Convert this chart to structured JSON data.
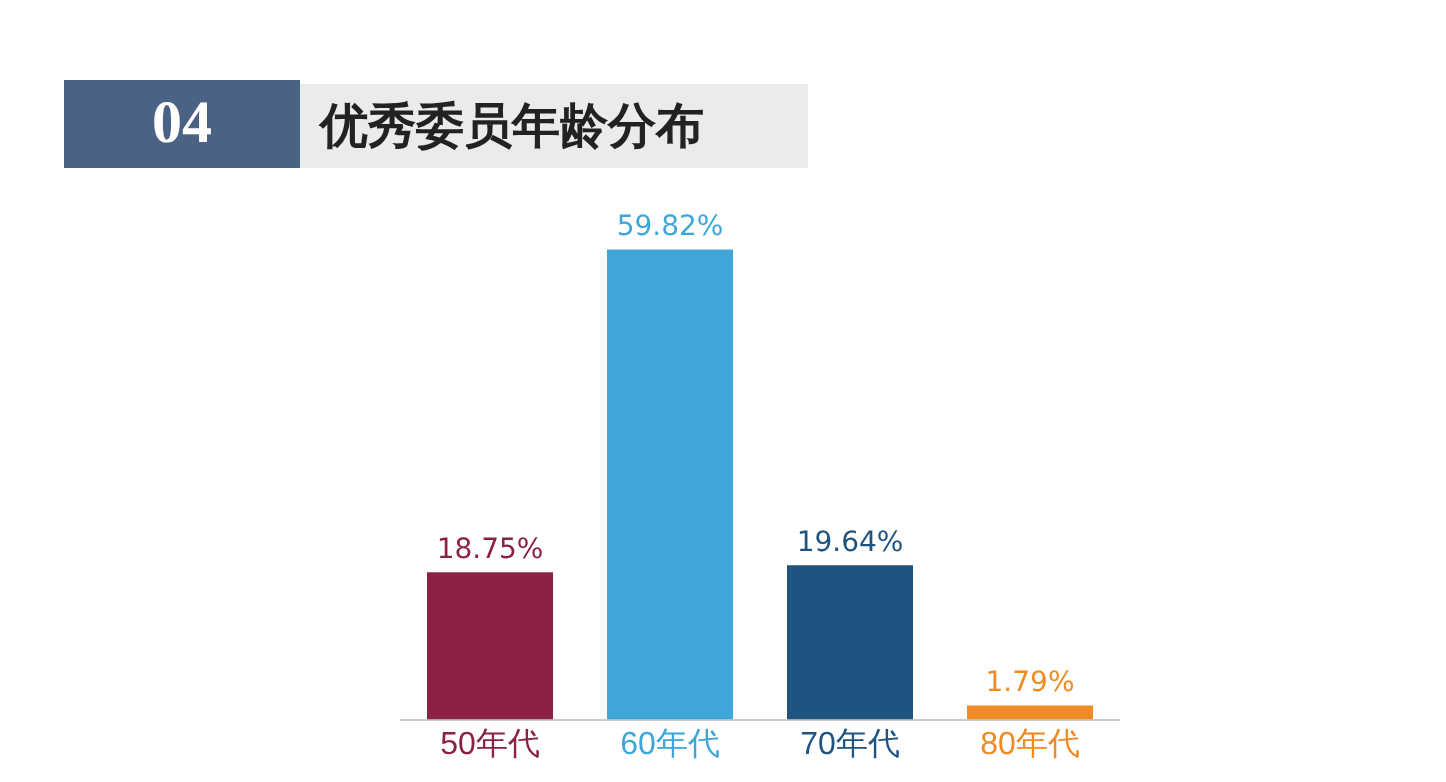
{
  "chart_data": {
    "type": "bar",
    "title": "优秀委员年龄分布",
    "annotations": [
      "04"
    ],
    "categories": [
      "50年代",
      "60年代",
      "70年代",
      "80年代"
    ],
    "values": [
      18.75,
      59.82,
      19.64,
      1.79
    ],
    "colors": [
      "#8b2246",
      "#3ea6d8",
      "#1f5480",
      "#f08a24"
    ],
    "value_labels": [
      "18.75%",
      "59.82%",
      "19.64%",
      "1.79%"
    ],
    "grid": false,
    "legend": false
  }
}
